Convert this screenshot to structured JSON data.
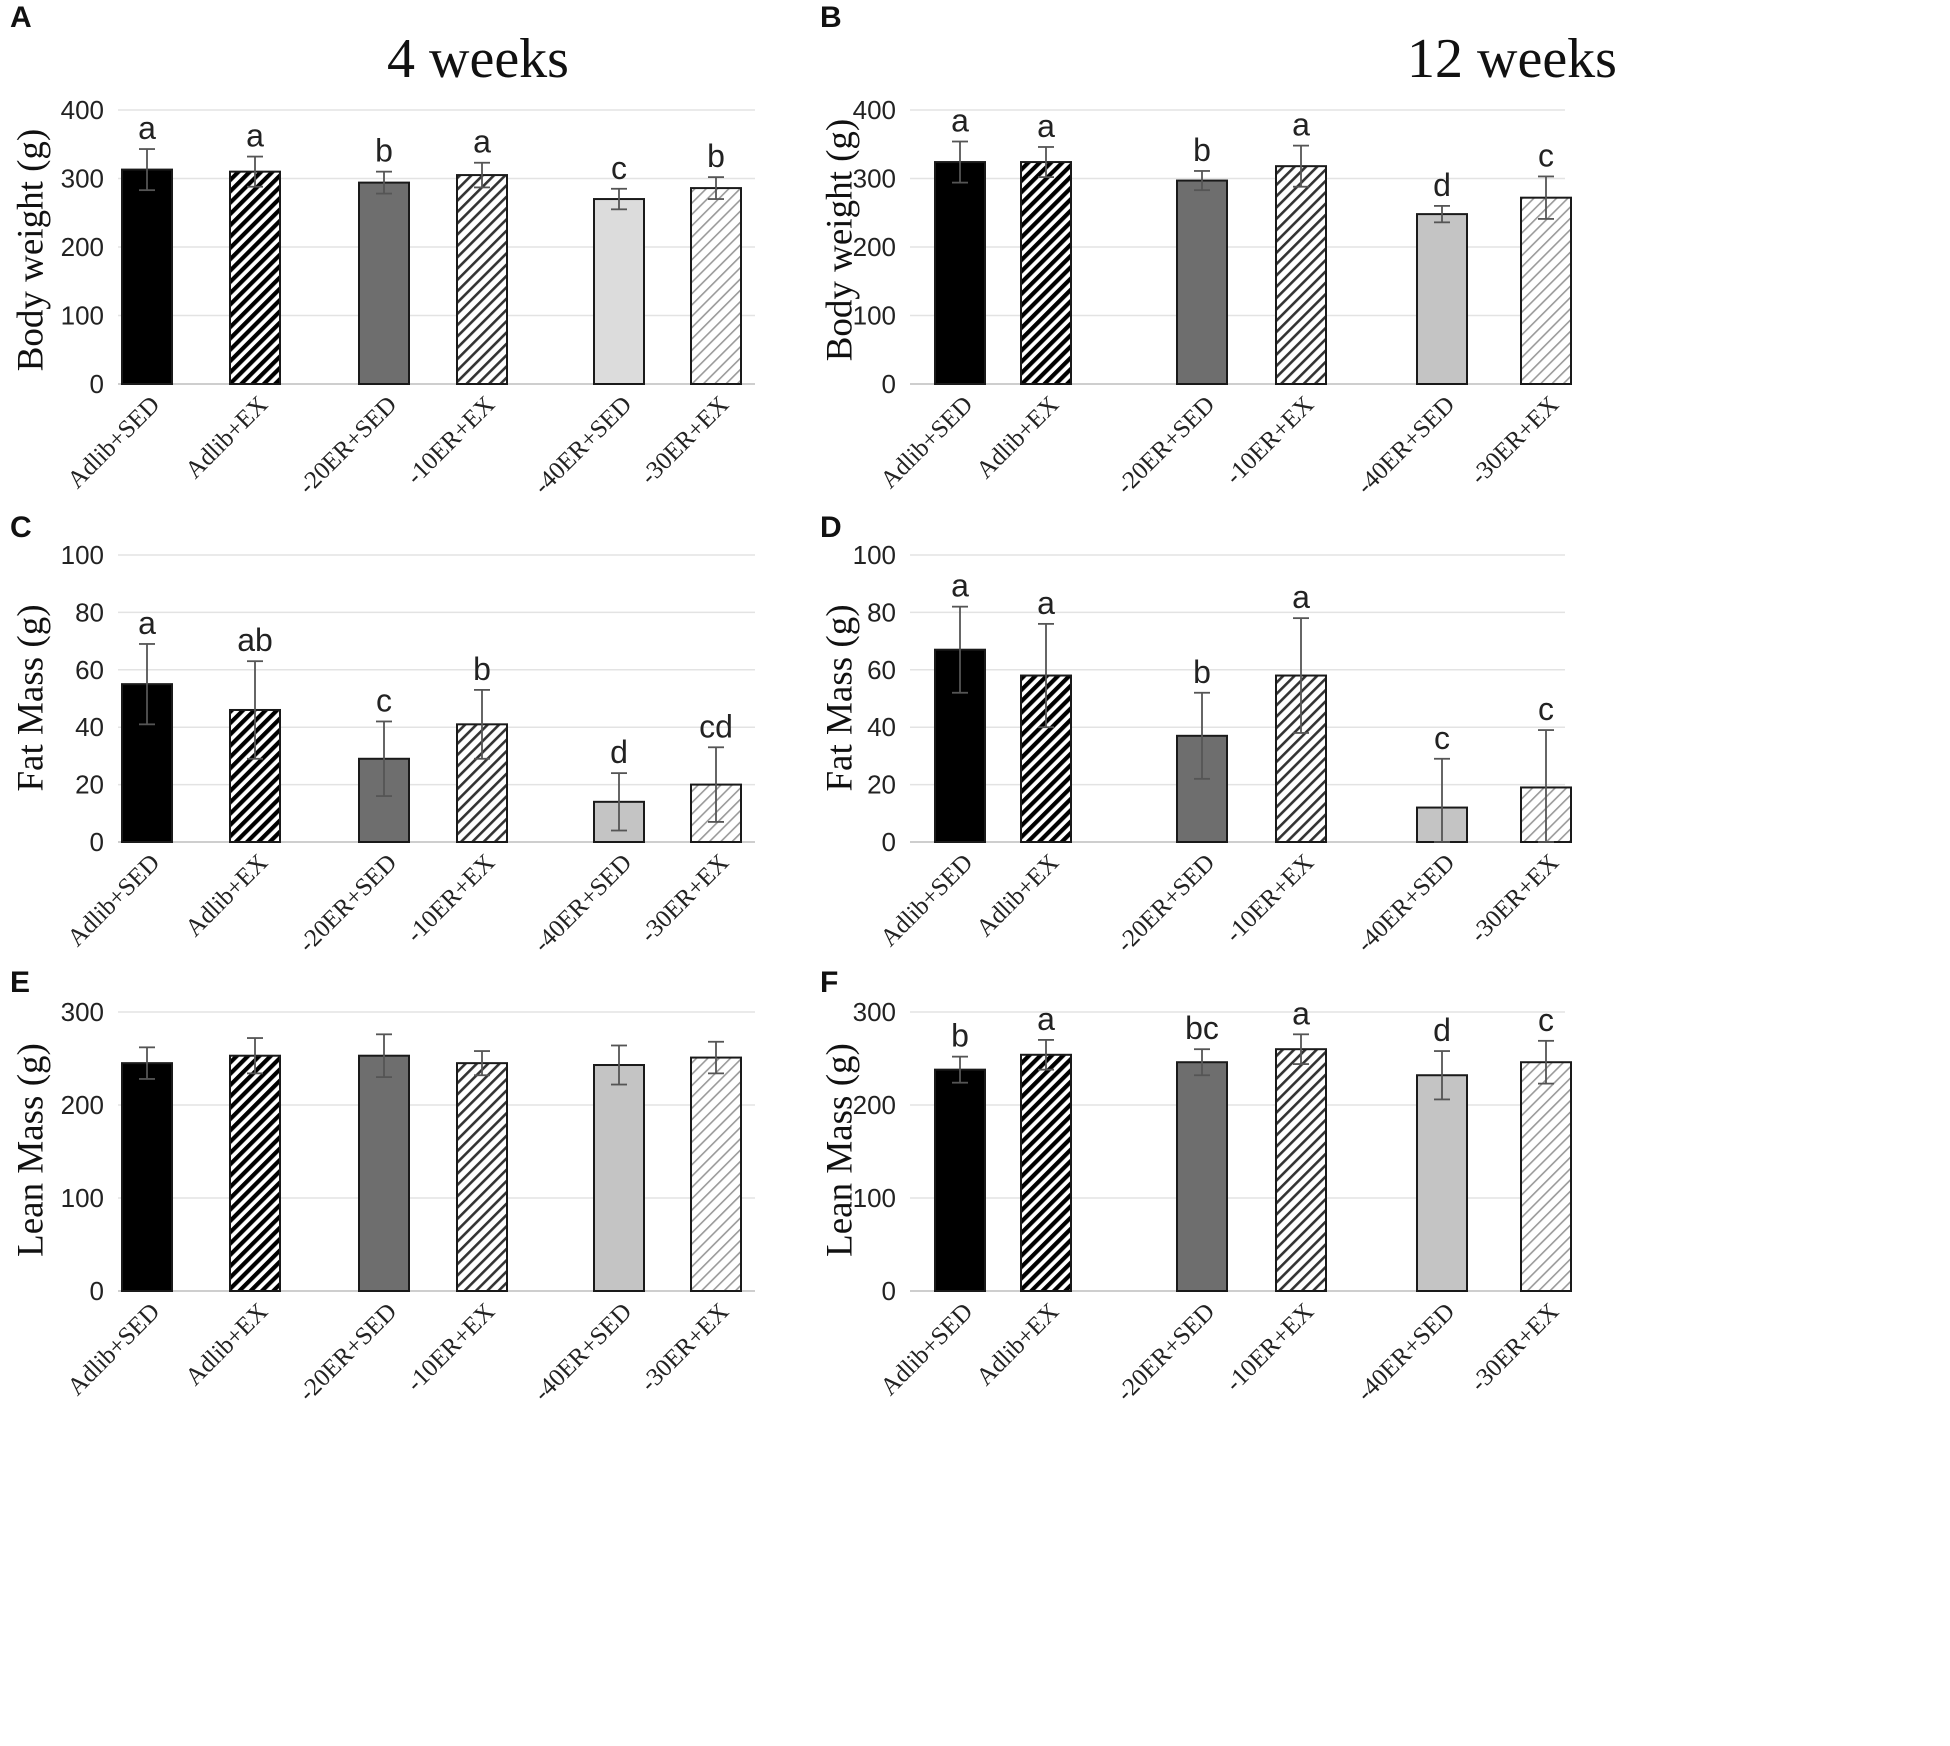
{
  "colors": {
    "adlib": "#000000",
    "er20": "#6e6e6e",
    "er40": "#dcdcdc",
    "er40_alt": "#c4c4c4",
    "bar_edge": "#1a1a1a",
    "gridline": "#e3e3e3"
  },
  "column_titles": [
    "4 weeks",
    "12 weeks"
  ],
  "chart_data": [
    {
      "panel": "A",
      "type": "bar",
      "title": "4 weeks",
      "ylabel": "Body weight (g)",
      "ylim": [
        0,
        400
      ],
      "yticks": [
        0,
        100,
        200,
        300,
        400
      ],
      "grid": true,
      "categories": [
        "Adlib+SED",
        "Adlib+EX",
        "-20ER+SED",
        "-10ER+EX",
        "-40ER+SED",
        "-30ER+EX"
      ],
      "values": [
        313,
        310,
        294,
        305,
        270,
        286
      ],
      "errors": [
        30,
        22,
        16,
        18,
        15,
        16
      ],
      "letters": [
        "a",
        "a",
        "b",
        "a",
        "c",
        "b"
      ],
      "fills": [
        "adlib",
        "adlib-hatch",
        "er20",
        "er20-hatch",
        "er40",
        "er40-hatch"
      ]
    },
    {
      "panel": "B",
      "type": "bar",
      "title": "12 weeks",
      "ylabel": "Body weight (g)",
      "ylim": [
        0,
        400
      ],
      "yticks": [
        0,
        100,
        200,
        300,
        400
      ],
      "grid": true,
      "categories": [
        "Adlib+SED",
        "Adlib+EX",
        "-20ER+SED",
        "-10ER+EX",
        "-40ER+SED",
        "-30ER+EX"
      ],
      "values": [
        324,
        324,
        297,
        318,
        248,
        272
      ],
      "errors": [
        30,
        22,
        14,
        30,
        12,
        31
      ],
      "letters": [
        "a",
        "a",
        "b",
        "a",
        "d",
        "c"
      ],
      "fills": [
        "adlib",
        "adlib-hatch",
        "er20",
        "er20-hatch",
        "er40alt",
        "er40-hatch"
      ]
    },
    {
      "panel": "C",
      "type": "bar",
      "title": "",
      "ylabel": "Fat Mass (g)",
      "ylim": [
        0,
        100
      ],
      "yticks": [
        0,
        20,
        40,
        60,
        80,
        100
      ],
      "grid": true,
      "categories": [
        "Adlib+SED",
        "Adlib+EX",
        "-20ER+SED",
        "-10ER+EX",
        "-40ER+SED",
        "-30ER+EX"
      ],
      "values": [
        55,
        46,
        29,
        41,
        14,
        20
      ],
      "errors": [
        14,
        17,
        13,
        12,
        10,
        13
      ],
      "letters": [
        "a",
        "ab",
        "c",
        "b",
        "d",
        "cd"
      ],
      "fills": [
        "adlib",
        "adlib-hatch",
        "er20",
        "er20-hatch",
        "er40alt",
        "er40-hatch"
      ]
    },
    {
      "panel": "D",
      "type": "bar",
      "title": "",
      "ylabel": "Fat Mass (g)",
      "ylim": [
        0,
        100
      ],
      "yticks": [
        0,
        20,
        40,
        60,
        80,
        100
      ],
      "grid": true,
      "categories": [
        "Adlib+SED",
        "Adlib+EX",
        "-20ER+SED",
        "-10ER+EX",
        "-40ER+SED",
        "-30ER+EX"
      ],
      "values": [
        67,
        58,
        37,
        58,
        12,
        19
      ],
      "errors": [
        15,
        18,
        15,
        20,
        17,
        20
      ],
      "letters": [
        "a",
        "a",
        "b",
        "a",
        "c",
        "c"
      ],
      "fills": [
        "adlib",
        "adlib-hatch",
        "er20",
        "er20-hatch",
        "er40alt",
        "er40-hatch"
      ]
    },
    {
      "panel": "E",
      "type": "bar",
      "title": "",
      "ylabel": "Lean Mass (g)",
      "ylim": [
        0,
        300
      ],
      "yticks": [
        0,
        100,
        200,
        300
      ],
      "grid": true,
      "categories": [
        "Adlib+SED",
        "Adlib+EX",
        "-20ER+SED",
        "-10ER+EX",
        "-40ER+SED",
        "-30ER+EX"
      ],
      "values": [
        245,
        253,
        253,
        245,
        243,
        251
      ],
      "errors": [
        17,
        19,
        23,
        13,
        21,
        17
      ],
      "letters": [
        "",
        "",
        "",
        "",
        "",
        ""
      ],
      "fills": [
        "adlib",
        "adlib-hatch",
        "er20",
        "er20-hatch",
        "er40alt",
        "er40-hatch"
      ]
    },
    {
      "panel": "F",
      "type": "bar",
      "title": "",
      "ylabel": "Lean Mass (g)",
      "ylim": [
        0,
        300
      ],
      "yticks": [
        0,
        100,
        200,
        300
      ],
      "grid": true,
      "categories": [
        "Adlib+SED",
        "Adlib+EX",
        "-20ER+SED",
        "-10ER+EX",
        "-40ER+SED",
        "-30ER+EX"
      ],
      "values": [
        238,
        254,
        246,
        260,
        232,
        246
      ],
      "errors": [
        14,
        16,
        14,
        16,
        26,
        23
      ],
      "letters": [
        "b",
        "a",
        "bc",
        "a",
        "d",
        "c"
      ],
      "fills": [
        "adlib",
        "adlib-hatch",
        "er20",
        "er20-hatch",
        "er40alt",
        "er40-hatch"
      ]
    }
  ]
}
